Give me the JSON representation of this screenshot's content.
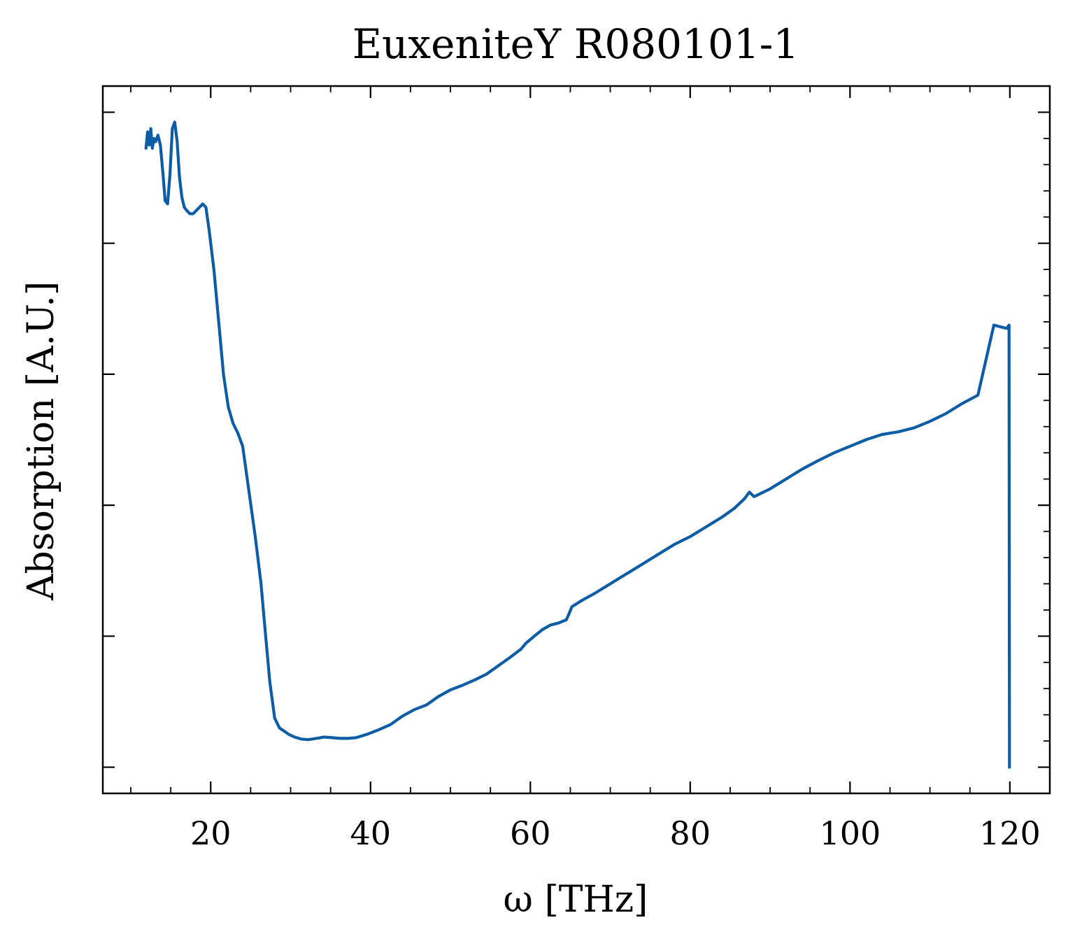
{
  "chart_data": {
    "type": "line",
    "title": "EuxeniteY R080101-1",
    "xlabel": "ω [THz]",
    "ylabel": "Absorption [A.U.]",
    "xlim": [
      6.5,
      125
    ],
    "ylim": [
      -0.04,
      1.04
    ],
    "x_ticks": [
      20,
      40,
      60,
      80,
      100,
      120
    ],
    "x_tick_labels": [
      "20",
      "40",
      "60",
      "80",
      "100",
      "120"
    ],
    "y_ticks": [
      0.0,
      0.2,
      0.4,
      0.6,
      0.8,
      1.0
    ],
    "y_tick_labels_shown": false,
    "grid": false,
    "ticks_direction": "in",
    "line_color": "#0C5DA5",
    "series": [
      {
        "x": [
          11.9,
          12.1,
          12.3,
          12.5,
          12.7,
          12.9,
          13.1,
          13.4,
          13.7,
          14.0,
          14.3,
          14.6,
          14.9,
          15.2,
          15.5,
          15.8,
          16.1,
          16.4,
          16.7,
          17.0,
          17.4,
          17.8,
          18.2,
          18.6,
          19.0,
          19.4,
          19.8,
          20.4,
          21.0,
          21.6,
          22.2,
          22.8,
          23.4,
          24.0,
          24.8,
          25.6,
          26.3,
          26.8,
          27.4,
          28.0,
          28.6,
          29.2,
          29.8,
          30.5,
          31.3,
          32.2,
          33.2,
          34.2,
          35.2,
          36.2,
          37.2,
          38.2,
          39.5,
          41.0,
          42.5,
          44.0,
          45.5,
          47.0,
          48.5,
          50.0,
          51.5,
          53.0,
          54.5,
          56.0,
          57.5,
          58.8,
          59.5,
          60.5,
          61.5,
          62.5,
          63.5,
          64.5,
          64.8,
          65.2,
          66.5,
          68.0,
          70.0,
          72.0,
          74.0,
          76.0,
          78.0,
          80.0,
          82.0,
          84.0,
          85.5,
          86.8,
          87.4,
          88.0,
          90.0,
          92.0,
          94.0,
          96.0,
          98.0,
          100.0,
          102.0,
          104.0,
          106.0,
          108.0,
          110.0,
          112.0,
          114.0,
          116.0,
          118.0,
          119.6,
          119.9,
          119.95
        ],
        "y": [
          0.945,
          0.97,
          0.95,
          0.975,
          0.945,
          0.96,
          0.955,
          0.965,
          0.95,
          0.91,
          0.865,
          0.86,
          0.905,
          0.975,
          0.985,
          0.955,
          0.9,
          0.87,
          0.855,
          0.85,
          0.845,
          0.845,
          0.85,
          0.855,
          0.86,
          0.855,
          0.82,
          0.76,
          0.68,
          0.6,
          0.55,
          0.525,
          0.51,
          0.49,
          0.42,
          0.35,
          0.28,
          0.21,
          0.13,
          0.075,
          0.06,
          0.055,
          0.05,
          0.046,
          0.043,
          0.042,
          0.044,
          0.046,
          0.045,
          0.044,
          0.044,
          0.045,
          0.05,
          0.057,
          0.065,
          0.078,
          0.088,
          0.095,
          0.108,
          0.118,
          0.125,
          0.133,
          0.142,
          0.155,
          0.168,
          0.18,
          0.19,
          0.2,
          0.21,
          0.217,
          0.22,
          0.225,
          0.233,
          0.245,
          0.255,
          0.265,
          0.28,
          0.295,
          0.31,
          0.325,
          0.34,
          0.352,
          0.367,
          0.382,
          0.395,
          0.41,
          0.42,
          0.413,
          0.425,
          0.44,
          0.455,
          0.468,
          0.48,
          0.49,
          0.5,
          0.508,
          0.512,
          0.518,
          0.528,
          0.54,
          0.555,
          0.568,
          0.675,
          0.67,
          0.675,
          0.0
        ]
      }
    ]
  }
}
